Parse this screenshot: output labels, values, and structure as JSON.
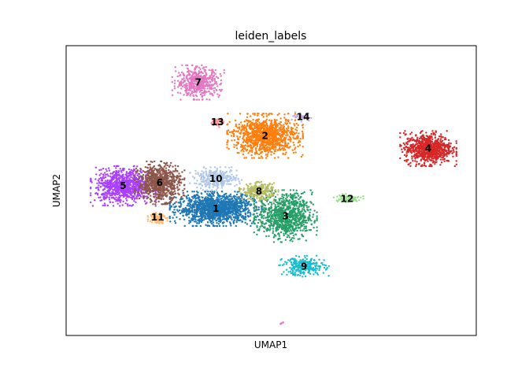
{
  "chart_data": {
    "type": "scatter",
    "title": "leiden_labels",
    "xlabel": "UMAP1",
    "ylabel": "UMAP2",
    "grid": false,
    "legend": "on-data",
    "xlim": [
      0,
      100
    ],
    "ylim": [
      0,
      100
    ],
    "clusters": [
      {
        "label": "1",
        "color": "#1f77b4",
        "center": [
          36.5,
          43.7
        ],
        "spread": [
          8.5,
          4.5
        ],
        "n": 1400
      },
      {
        "label": "2",
        "color": "#ff7f0e",
        "center": [
          48.5,
          68.9
        ],
        "spread": [
          7.0,
          5.8
        ],
        "n": 1100
      },
      {
        "label": "3",
        "color": "#279e68",
        "center": [
          53.5,
          41.2
        ],
        "spread": [
          5.8,
          6.8
        ],
        "n": 900
      },
      {
        "label": "4",
        "color": "#d62728",
        "center": [
          88.3,
          64.5
        ],
        "spread": [
          5.2,
          4.6
        ],
        "n": 800
      },
      {
        "label": "5",
        "color": "#aa40fc",
        "center": [
          13.9,
          51.6
        ],
        "spread": [
          6.0,
          5.2
        ],
        "n": 850
      },
      {
        "label": "6",
        "color": "#8c564b",
        "center": [
          22.8,
          52.7
        ],
        "spread": [
          4.6,
          5.6
        ],
        "n": 750
      },
      {
        "label": "7",
        "color": "#e377c2",
        "center": [
          32.2,
          87.3
        ],
        "spread": [
          4.8,
          4.5
        ],
        "n": 500
      },
      {
        "label": "8",
        "color": "#b5bd61",
        "center": [
          47.0,
          49.7
        ],
        "spread": [
          3.6,
          2.5
        ],
        "n": 250
      },
      {
        "label": "9",
        "color": "#17becf",
        "center": [
          58.0,
          23.8
        ],
        "spread": [
          4.6,
          2.8
        ],
        "n": 260
      },
      {
        "label": "10",
        "color": "#aec7e8",
        "center": [
          36.5,
          54.1
        ],
        "spread": [
          4.8,
          3.0
        ],
        "n": 300
      },
      {
        "label": "11",
        "color": "#ffbb78",
        "center": [
          22.3,
          40.7
        ],
        "spread": [
          1.8,
          1.8
        ],
        "n": 90
      },
      {
        "label": "12",
        "color": "#98df8a",
        "center": [
          68.5,
          47.2
        ],
        "spread": [
          3.0,
          1.3
        ],
        "n": 90
      },
      {
        "label": "13",
        "color": "#ff9896",
        "center": [
          36.9,
          73.6
        ],
        "spread": [
          1.3,
          1.3
        ],
        "n": 50
      },
      {
        "label": "14",
        "color": "#c5b0d5",
        "center": [
          57.8,
          75.4
        ],
        "spread": [
          2.2,
          1.2
        ],
        "n": 40
      }
    ],
    "label_positions": {
      "1": [
        36.5,
        43.7
      ],
      "2": [
        48.5,
        68.9
      ],
      "3": [
        53.5,
        41.2
      ],
      "4": [
        88.3,
        64.5
      ],
      "5": [
        13.9,
        51.6
      ],
      "6": [
        22.8,
        52.7
      ],
      "7": [
        32.2,
        87.3
      ],
      "8": [
        47.0,
        49.7
      ],
      "9": [
        58.0,
        23.8
      ],
      "10": [
        36.5,
        54.1
      ],
      "11": [
        22.3,
        40.7
      ],
      "12": [
        68.5,
        47.2
      ],
      "13": [
        36.9,
        73.6
      ],
      "14": [
        57.8,
        75.4
      ]
    },
    "outlier_points": [
      {
        "label": "7",
        "color": "#e377c2",
        "points": [
          [
            52.5,
            4.2
          ],
          [
            52.9,
            4.5
          ],
          [
            52.3,
            4.0
          ]
        ]
      }
    ]
  }
}
